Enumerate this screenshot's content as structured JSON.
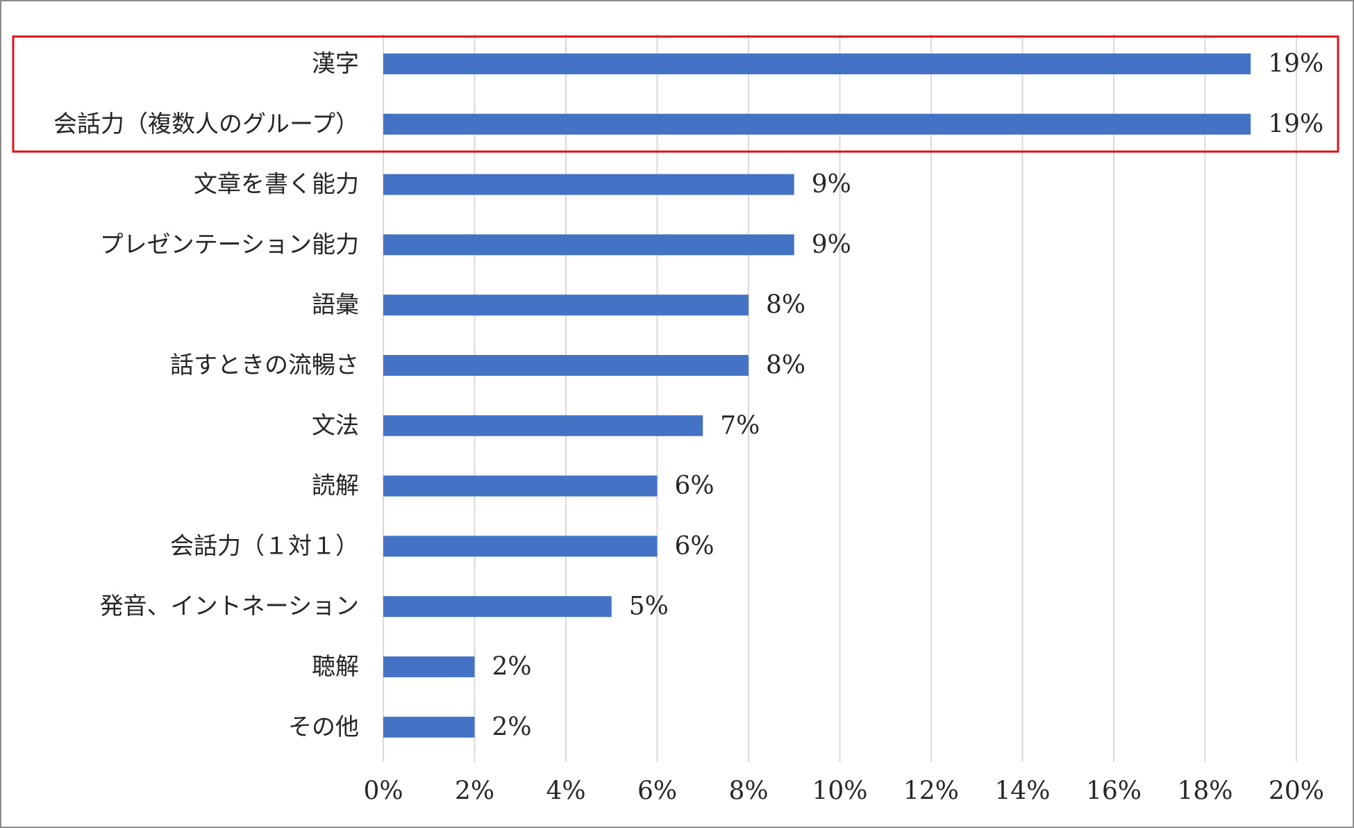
{
  "chart_data": {
    "type": "bar",
    "orientation": "horizontal",
    "categories": [
      "漢字",
      "会話力（複数人のグループ）",
      "文章を書く能力",
      "プレゼンテーション能力",
      "語彙",
      "話すときの流暢さ",
      "文法",
      "読解",
      "会話力（１対１）",
      "発音、イントネーション",
      "聴解",
      "その他"
    ],
    "values": [
      19,
      19,
      9,
      9,
      8,
      8,
      7,
      6,
      6,
      5,
      2,
      2
    ],
    "data_labels": [
      "19%",
      "19%",
      "9%",
      "9%",
      "8%",
      "8%",
      "7%",
      "6%",
      "6%",
      "5%",
      "2%",
      "2%"
    ],
    "xlim": [
      0,
      20
    ],
    "x_ticks": [
      0,
      2,
      4,
      6,
      8,
      10,
      12,
      14,
      16,
      18,
      20
    ],
    "x_tick_labels": [
      "0%",
      "2%",
      "4%",
      "6%",
      "8%",
      "10%",
      "12%",
      "14%",
      "16%",
      "18%",
      "20%"
    ],
    "vertical_grid": true,
    "legend": "none",
    "highlight": {
      "categories": [
        "漢字",
        "会話力（複数人のグループ）"
      ],
      "color": "#e0101b"
    },
    "colors": {
      "bar": "#4472c4",
      "grid": "#d9d9d9",
      "text": "#262626",
      "border": "#8c8c8c"
    }
  }
}
